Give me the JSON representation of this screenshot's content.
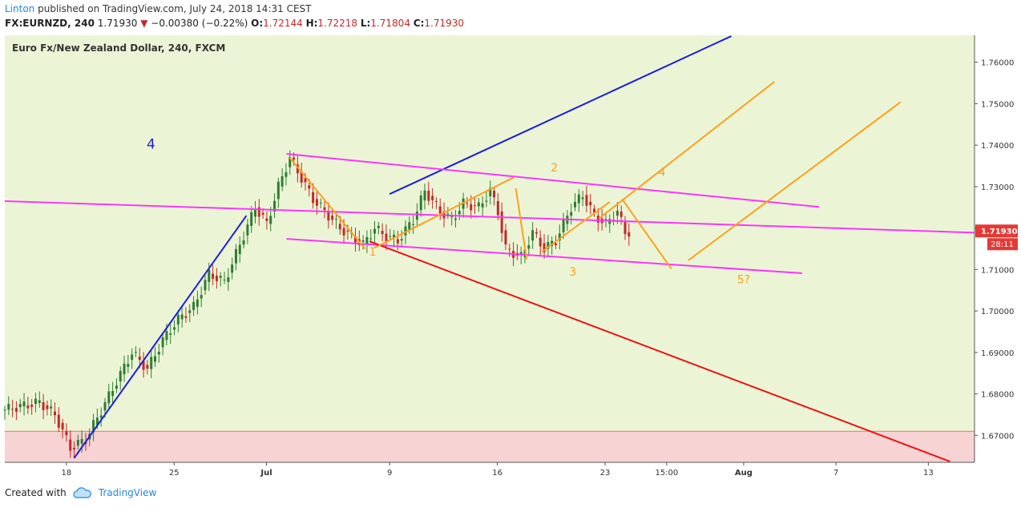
{
  "header": {
    "author": "Linton",
    "published": "published on TradingView.com, July 24, 2018 14:31 CEST",
    "symbol": "FX:EURNZD, 240",
    "last": "1.71930",
    "change_arrow": "▼",
    "change": "−0.00380 (−0.22%)",
    "o_label": "O:",
    "o": "1.72144",
    "h_label": "H:",
    "h": "1.72218",
    "l_label": "L:",
    "l": "1.71804",
    "c_label": "C:",
    "c": "1.71930"
  },
  "footer": {
    "created_with": "Created with",
    "brand": "TradingView",
    "logo_icon": "tradingview-cloud-icon"
  },
  "colors": {
    "background": "#ebf5d5",
    "zone": "#f7d3d3",
    "bull": "#2e7d32",
    "bear": "#c62828",
    "blue": "#1c1ce0",
    "magenta": "#ff33ff",
    "orange": "#ff9f1a",
    "red_line": "#ee1111",
    "price_badge": "#e53935"
  },
  "chart_data": {
    "type": "candlestick",
    "title": "Euro Fx/New Zealand Dollar, 240, FXCM",
    "y_ticks": [
      "1.76000",
      "1.75000",
      "1.74000",
      "1.73000",
      "1.72000",
      "1.71000",
      "1.70000",
      "1.69000",
      "1.68000",
      "1.67000"
    ],
    "y_range": [
      1.6635,
      1.7665
    ],
    "x_range": [
      "Jun 14",
      "Aug 16"
    ],
    "x_ticks": [
      {
        "label": "18",
        "date": "2018-06-18"
      },
      {
        "label": "25",
        "date": "2018-06-25"
      },
      {
        "label": "Jul",
        "date": "2018-07-01",
        "bold": true
      },
      {
        "label": "9",
        "date": "2018-07-09"
      },
      {
        "label": "16",
        "date": "2018-07-16"
      },
      {
        "label": "23",
        "date": "2018-07-23"
      },
      {
        "label": "15:00",
        "date": "2018-07-27"
      },
      {
        "label": "Aug",
        "date": "2018-08-01",
        "bold": true
      },
      {
        "label": "7",
        "date": "2018-08-07"
      },
      {
        "label": "13",
        "date": "2018-08-13"
      }
    ],
    "current_price": "1.71930",
    "countdown": "28:11",
    "support_zone": [
      1.655,
      1.671
    ],
    "price_waypoints": [
      [
        0,
        1.676
      ],
      [
        10,
        1.678
      ],
      [
        14,
        1.675
      ],
      [
        18,
        1.667
      ],
      [
        22,
        1.669
      ],
      [
        26,
        1.676
      ],
      [
        30,
        1.683
      ],
      [
        34,
        1.69
      ],
      [
        38,
        1.686
      ],
      [
        42,
        1.693
      ],
      [
        46,
        1.698
      ],
      [
        50,
        1.701
      ],
      [
        54,
        1.709
      ],
      [
        58,
        1.707
      ],
      [
        62,
        1.716
      ],
      [
        66,
        1.725
      ],
      [
        69,
        1.721
      ],
      [
        72,
        1.73
      ],
      [
        75,
        1.737
      ],
      [
        78,
        1.732
      ],
      [
        81,
        1.727
      ],
      [
        84,
        1.724
      ],
      [
        88,
        1.72
      ],
      [
        91,
        1.718
      ],
      [
        94,
        1.716
      ],
      [
        97,
        1.72
      ],
      [
        100,
        1.718
      ],
      [
        103,
        1.717
      ],
      [
        107,
        1.722
      ],
      [
        110,
        1.729
      ],
      [
        114,
        1.724
      ],
      [
        117,
        1.722
      ],
      [
        120,
        1.726
      ],
      [
        124,
        1.725
      ],
      [
        127,
        1.729
      ],
      [
        129,
        1.724
      ],
      [
        131,
        1.715
      ],
      [
        135,
        1.713
      ],
      [
        138,
        1.719
      ],
      [
        141,
        1.715
      ],
      [
        144,
        1.717
      ],
      [
        148,
        1.725
      ],
      [
        151,
        1.728
      ],
      [
        154,
        1.723
      ],
      [
        157,
        1.721
      ],
      [
        160,
        1.724
      ],
      [
        162,
        1.719
      ]
    ],
    "candle_count": 163,
    "annotations": {
      "labels": [
        {
          "text": "4",
          "color": "blue",
          "date": "2018-06-23.5",
          "price": 1.7392
        },
        {
          "text": "1",
          "color": "orange",
          "date": "2018-07-07.9",
          "price": 1.7134
        },
        {
          "text": "2",
          "color": "orange",
          "date": "2018-07-19.7",
          "price": 1.7336
        },
        {
          "text": "3",
          "color": "orange",
          "date": "2018-07-20.9",
          "price": 1.7085
        },
        {
          "text": "4",
          "color": "orange",
          "date": "2018-07-26.7",
          "price": 1.7326
        },
        {
          "text": "5?",
          "color": "orange",
          "date": "2018-08-01",
          "price": 1.7067
        }
      ],
      "lines": [
        {
          "color": "blue",
          "from": [
            "2018-06-18.5",
            1.6645
          ],
          "to": [
            "2018-06-29.7",
            1.723
          ]
        },
        {
          "color": "blue",
          "from": [
            "2018-07-09",
            1.7282
          ],
          "to": [
            "2018-07-31.2",
            1.7663
          ]
        },
        {
          "color": "magenta",
          "from": [
            "2018-06-14",
            1.7265
          ],
          "to": [
            "2018-08-16",
            1.7189
          ]
        },
        {
          "color": "magenta",
          "from": [
            "2018-07-02.3",
            1.7379
          ],
          "to": [
            "2018-08-05.9",
            1.7251
          ]
        },
        {
          "color": "magenta",
          "from": [
            "2018-07-02.3",
            1.7174
          ],
          "to": [
            "2018-08-04.8",
            1.7091
          ]
        },
        {
          "color": "red",
          "from": [
            "2018-07-07.7",
            1.7168
          ],
          "to": [
            "2018-08-14.4",
            1.6637
          ]
        },
        {
          "color": "orange",
          "from": [
            "2018-07-02.5",
            1.737
          ],
          "to": [
            "2018-07-07.4",
            1.715
          ]
        },
        {
          "color": "orange",
          "from": [
            "2018-07-08.0",
            1.7152
          ],
          "to": [
            "2018-07-17.1",
            1.7323
          ]
        },
        {
          "color": "orange",
          "from": [
            "2018-07-17.2",
            1.7296
          ],
          "to": [
            "2018-07-17.9",
            1.7125
          ]
        },
        {
          "color": "orange",
          "from": [
            "2018-07-18.9",
            1.7143
          ],
          "to": [
            "2018-07-23.3",
            1.7263
          ]
        },
        {
          "color": "orange",
          "from": [
            "2018-07-24.1",
            1.727
          ],
          "to": [
            "2018-07-27.3",
            1.7102
          ]
        },
        {
          "color": "orange",
          "from": [
            "2018-07-22.6",
            1.7223
          ],
          "to": [
            "2018-08-03.0",
            1.7553
          ]
        },
        {
          "color": "orange",
          "from": [
            "2018-07-28.4",
            1.7122
          ],
          "to": [
            "2018-08-11.2",
            1.7504
          ]
        }
      ]
    }
  }
}
